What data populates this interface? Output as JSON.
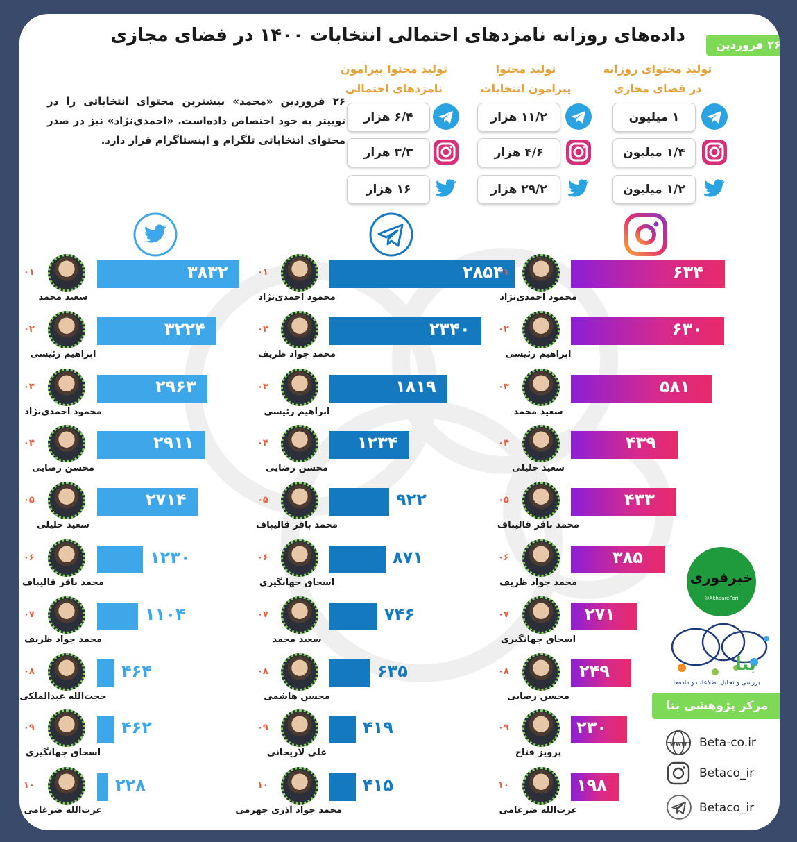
{
  "header": {
    "title": "داده‌های روزانه نامزدهای احتمالی انتخابات ۱۴۰۰ در فضای مجازی",
    "date": "۲۶ فروردین"
  },
  "intro": "۲۶ فروردین «محمد» بیشترین محتوای انتخاباتی را در توییتر به خود اختصاص داده‌است. «احمدی‌نژاد» نیز در صدر محتوای انتخاباتی تلگرام و اینستاگرام قرار دارد.",
  "summary": {
    "daily": {
      "head_line1": "تولید محتوای روزانه",
      "head_line2": "در فضای مجازی",
      "telegram": "۱ میلیون",
      "instagram": "۱/۴ میلیون",
      "twitter": "۱/۲ میلیون"
    },
    "election": {
      "head_line1": "تولید محتوا",
      "head_line2": "پیرامون انتخابات",
      "telegram": "۱۱/۲ هزار",
      "instagram": "۴/۶ هزار",
      "twitter": "۲۹/۲ هزار"
    },
    "candidates": {
      "head_line1": "تولید محتوا پیرامون",
      "head_line2": "نامزدهای احتمالی",
      "telegram": "۶/۴ هزار",
      "instagram": "۳/۳ هزار",
      "twitter": "۱۶ هزار"
    }
  },
  "chart_data": [
    {
      "type": "bar",
      "platform": "twitter",
      "ranks": [
        "۰۱",
        "۰۲",
        "۰۳",
        "۰۴",
        "۰۵",
        "۰۶",
        "۰۷",
        "۰۸",
        "۰۹",
        "۱۰"
      ],
      "categories": [
        "سعید محمد",
        "ابراهیم رئیسی",
        "محمود احمدی‌نژاد",
        "محسن رضایی",
        "سعید جلیلی",
        "محمد باقر قالیباف",
        "محمد جواد ظریف",
        "حجت‌الله عبدالملکی",
        "اسحاق جهانگیری",
        "عزت‌الله ضرغامی"
      ],
      "values": [
        3832,
        3224,
        2963,
        2911,
        2714,
        1230,
        1104,
        464,
        462,
        228
      ],
      "labels": [
        "۳۸۳۲",
        "۳۲۲۴",
        "۲۹۶۳",
        "۲۹۱۱",
        "۲۷۱۴",
        "۱۲۳۰",
        "۱۱۰۴",
        "۴۶۴",
        "۴۶۲",
        "۲۲۸"
      ],
      "color": "#3ea7ea"
    },
    {
      "type": "bar",
      "platform": "telegram",
      "ranks": [
        "۰۱",
        "۰۲",
        "۰۳",
        "۰۴",
        "۰۵",
        "۰۶",
        "۰۷",
        "۰۸",
        "۰۹",
        "۱۰"
      ],
      "categories": [
        "محمود احمدی‌نژاد",
        "محمد جواد ظریف",
        "ابراهیم رئیسی",
        "محسن رضایی",
        "محمد باقر قالیباف",
        "اسحاق جهانگیری",
        "سعید محمد",
        "محسن هاشمی",
        "علی لاریجانی",
        "محمد جواد آذری جهرمی"
      ],
      "values": [
        2854,
        2340,
        1819,
        1234,
        922,
        871,
        746,
        635,
        419,
        415
      ],
      "labels": [
        "۲۸۵۴",
        "۲۳۴۰",
        "۱۸۱۹",
        "۱۲۳۴",
        "۹۲۲",
        "۸۷۱",
        "۷۴۶",
        "۶۳۵",
        "۴۱۹",
        "۴۱۵"
      ],
      "color": "#1479bf"
    },
    {
      "type": "bar",
      "platform": "instagram",
      "ranks": [
        "۰۱",
        "۰۲",
        "۰۳",
        "۰۴",
        "۰۵",
        "۰۶",
        "۰۷",
        "۰۸",
        "۰۹",
        "۱۰"
      ],
      "categories": [
        "محمود احمدی‌نژاد",
        "ابراهیم رئیسی",
        "سعید محمد",
        "سعید جلیلی",
        "محمد باقر قالیباف",
        "محمد جواد ظریف",
        "اسحاق جهانگیری",
        "محسن رضایی",
        "پرویز فتاح",
        "عزت‌الله ضرغامی"
      ],
      "values": [
        634,
        630,
        581,
        439,
        433,
        385,
        271,
        249,
        230,
        198
      ],
      "labels": [
        "۶۳۴",
        "۶۳۰",
        "۵۸۱",
        "۴۳۹",
        "۴۳۳",
        "۳۸۵",
        "۲۷۱",
        "۲۴۹",
        "۲۳۰",
        "۱۹۸"
      ],
      "color": "#d62a8d"
    }
  ],
  "brand": {
    "logo_text": "بتا",
    "logo_sub": "بررسی و تحلیل اطلاعات و داده‌ها",
    "center": "مرکز پژوهشی بتا",
    "website": "Beta-co.ir",
    "instagram": "Betaco_ir",
    "telegram": "Betaco_ir",
    "partner_logo": "خبرفوری",
    "partner_handle": "@AkhbareFori",
    "www": "www"
  },
  "icons": {
    "twitter": "twitter-icon",
    "telegram": "telegram-icon",
    "instagram": "instagram-icon",
    "web": "globe-icon"
  }
}
